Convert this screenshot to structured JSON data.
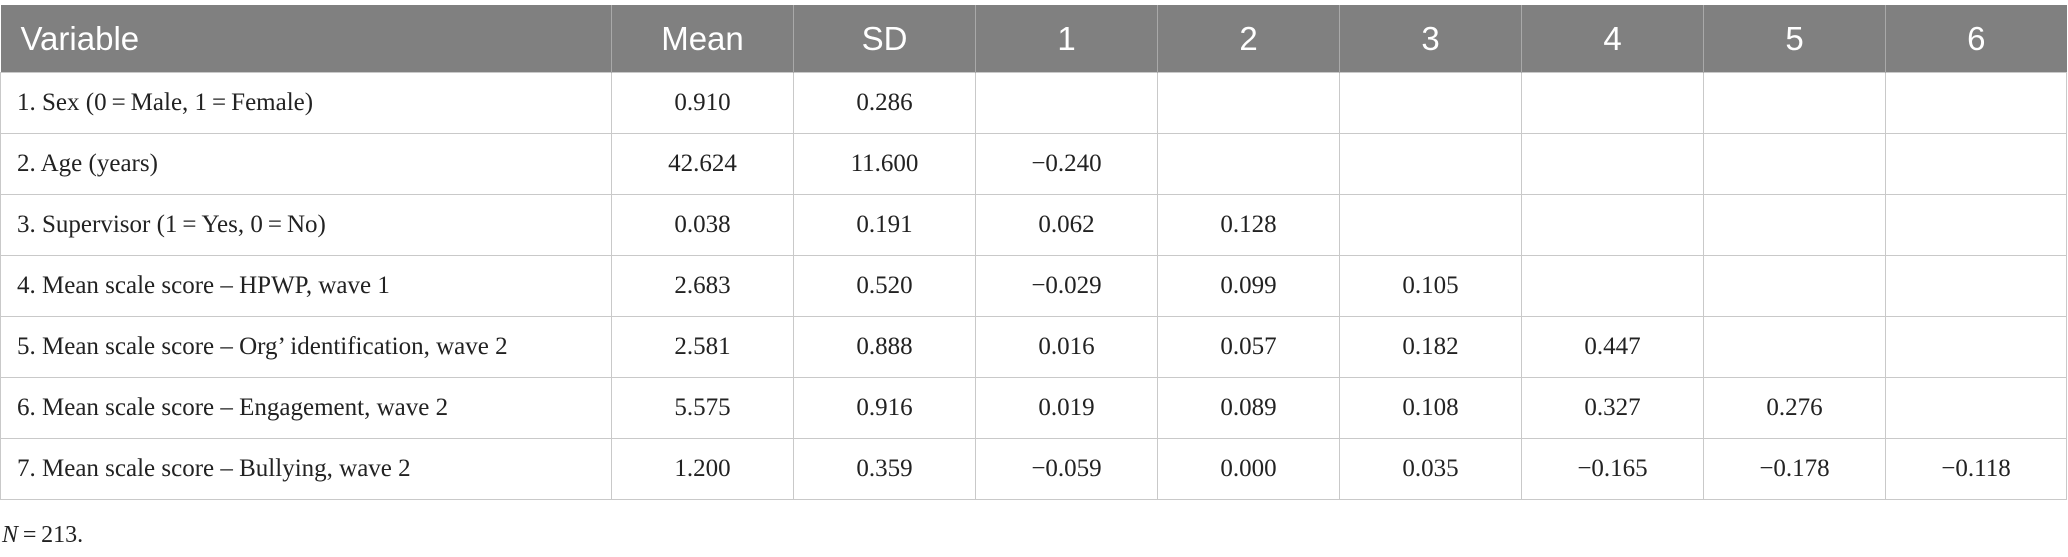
{
  "table": {
    "header": [
      "Variable",
      "Mean",
      "SD",
      "1",
      "2",
      "3",
      "4",
      "5",
      "6"
    ],
    "rows": [
      [
        "1. Sex (0 = Male, 1 = Female)",
        "0.910",
        "0.286",
        null,
        null,
        null,
        null,
        null,
        null
      ],
      [
        "2. Age (years)",
        "42.624",
        "11.600",
        "−0.240",
        null,
        null,
        null,
        null,
        null
      ],
      [
        "3. Supervisor (1 = Yes, 0 = No)",
        "0.038",
        "0.191",
        "0.062",
        "0.128",
        null,
        null,
        null,
        null
      ],
      [
        "4. Mean scale score – HPWP, wave 1",
        "2.683",
        "0.520",
        "−0.029",
        "0.099",
        "0.105",
        null,
        null,
        null
      ],
      [
        "5. Mean scale score – Org’ identification, wave 2",
        "2.581",
        "0.888",
        "0.016",
        "0.057",
        "0.182",
        "0.447",
        null,
        null
      ],
      [
        "6. Mean scale score – Engagement, wave 2",
        "5.575",
        "0.916",
        "0.019",
        "0.089",
        "0.108",
        "0.327",
        "0.276",
        null
      ],
      [
        "7. Mean scale score – Bullying, wave 2",
        "1.200",
        "0.359",
        "−0.059",
        "0.000",
        "0.035",
        "−0.165",
        "−0.178",
        "−0.118"
      ]
    ]
  },
  "note": {
    "symbol": "N",
    "text": " = 213."
  }
}
